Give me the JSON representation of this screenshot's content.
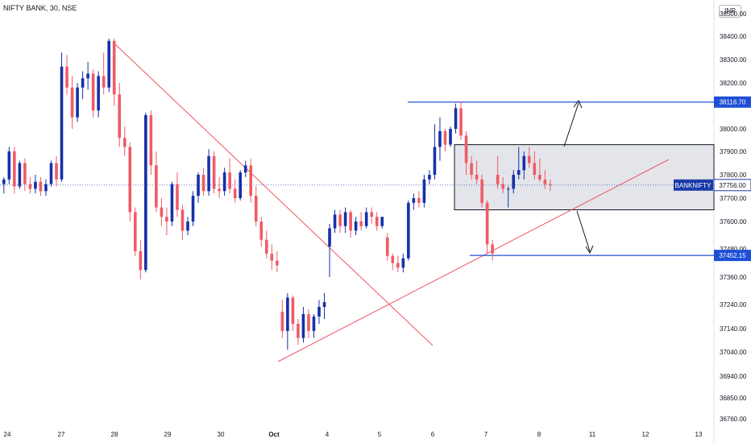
{
  "header": {
    "title": "NIFTY BANK, 30, NSE",
    "currency": "INR"
  },
  "chart_data": {
    "type": "candlestick",
    "symbol": "BANKNIFTY",
    "colors": {
      "up": "#1530a8",
      "down": "#ef5b65",
      "line": "#1f4fd6",
      "trend": "#ee5563",
      "box": "#e3e5ea"
    },
    "y_ticks": [
      38500,
      38400,
      38300,
      38200,
      38000,
      37900,
      37800,
      37700,
      37600,
      37480,
      37360,
      37240,
      37140,
      37040,
      36940,
      36850,
      36760
    ],
    "y_tick_labels": [
      "38500.00",
      "38400.00",
      "38300.00",
      "38200.00",
      "38000.00",
      "37900.00",
      "37800.00",
      "37700.00",
      "37600.00",
      "37480.00",
      "37360.00",
      "37240.00",
      "37140.00",
      "37040.00",
      "36940.00",
      "36850.00",
      "36760.00"
    ],
    "x_labels": [
      "24",
      "27",
      "28",
      "29",
      "30",
      "Oct",
      "4",
      "5",
      "6",
      "7",
      "8",
      "11",
      "12",
      "13"
    ],
    "price_labels": [
      {
        "text": "38116.70",
        "value": 38116.7
      },
      {
        "text": "37756.00",
        "value": 37756
      },
      {
        "text": "37452.15",
        "value": 37452.15
      }
    ],
    "symbol_tag": "BANKNIFTY",
    "last_price": 37756,
    "resistance": 38116.7,
    "support": 37452.15,
    "range_box": {
      "top": 37930,
      "bottom": 37650
    },
    "candles": [
      [
        37760,
        37790,
        37720,
        37780
      ],
      [
        37780,
        37920,
        37760,
        37900
      ],
      [
        37900,
        37920,
        37720,
        37750
      ],
      [
        37750,
        37860,
        37740,
        37850
      ],
      [
        37850,
        37870,
        37730,
        37760
      ],
      [
        37760,
        37790,
        37720,
        37740
      ],
      [
        37740,
        37800,
        37720,
        37770
      ],
      [
        37770,
        37790,
        37710,
        37730
      ],
      [
        37730,
        37780,
        37710,
        37760
      ],
      [
        37760,
        37860,
        37750,
        37850
      ],
      [
        37850,
        37880,
        37750,
        37780
      ],
      [
        37780,
        38330,
        37770,
        38270
      ],
      [
        38270,
        38320,
        38150,
        38180
      ],
      [
        38180,
        38230,
        38000,
        38050
      ],
      [
        38050,
        38200,
        38030,
        38180
      ],
      [
        38180,
        38250,
        38130,
        38220
      ],
      [
        38220,
        38290,
        38170,
        38240
      ],
      [
        38240,
        38260,
        38050,
        38080
      ],
      [
        38080,
        38250,
        38050,
        38230
      ],
      [
        38230,
        38330,
        38150,
        38180
      ],
      [
        38180,
        38390,
        38160,
        38380
      ],
      [
        38380,
        38390,
        38100,
        38150
      ],
      [
        38150,
        38200,
        37920,
        37960
      ],
      [
        37960,
        38010,
        37880,
        37920
      ],
      [
        37920,
        37940,
        37600,
        37640
      ],
      [
        37640,
        37660,
        37450,
        37470
      ],
      [
        37470,
        37520,
        37350,
        37390
      ],
      [
        37390,
        38070,
        37380,
        38060
      ],
      [
        38060,
        38080,
        37800,
        37840
      ],
      [
        37840,
        37900,
        37640,
        37660
      ],
      [
        37660,
        37700,
        37580,
        37620
      ],
      [
        37620,
        37660,
        37540,
        37600
      ],
      [
        37600,
        37770,
        37580,
        37760
      ],
      [
        37760,
        37810,
        37620,
        37650
      ],
      [
        37650,
        37670,
        37520,
        37560
      ],
      [
        37560,
        37620,
        37540,
        37600
      ],
      [
        37600,
        37730,
        37580,
        37710
      ],
      [
        37710,
        37810,
        37680,
        37800
      ],
      [
        37800,
        37830,
        37710,
        37730
      ],
      [
        37730,
        37910,
        37710,
        37880
      ],
      [
        37880,
        37900,
        37720,
        37740
      ],
      [
        37740,
        37790,
        37700,
        37730
      ],
      [
        37730,
        37830,
        37710,
        37810
      ],
      [
        37810,
        37870,
        37720,
        37740
      ],
      [
        37740,
        37780,
        37680,
        37700
      ],
      [
        37700,
        37820,
        37690,
        37810
      ],
      [
        37810,
        37860,
        37790,
        37840
      ],
      [
        37840,
        37870,
        37680,
        37710
      ],
      [
        37710,
        37750,
        37580,
        37600
      ],
      [
        37600,
        37620,
        37490,
        37520
      ],
      [
        37520,
        37560,
        37440,
        37460
      ],
      [
        37460,
        37500,
        37390,
        37430
      ],
      [
        37430,
        37470,
        37380,
        37410
      ],
      [
        37210,
        37260,
        37100,
        37130
      ],
      [
        37130,
        37290,
        37050,
        37270
      ],
      [
        37270,
        37280,
        37130,
        37160
      ],
      [
        37160,
        37180,
        37070,
        37100
      ],
      [
        37100,
        37230,
        37080,
        37200
      ],
      [
        37200,
        37220,
        37100,
        37130
      ],
      [
        37130,
        37200,
        37100,
        37190
      ],
      [
        37190,
        37260,
        37160,
        37230
      ],
      [
        37230,
        37290,
        37180,
        37250
      ],
      [
        37490,
        37590,
        37360,
        37570
      ],
      [
        37570,
        37650,
        37550,
        37630
      ],
      [
        37630,
        37650,
        37550,
        37580
      ],
      [
        37580,
        37660,
        37550,
        37640
      ],
      [
        37640,
        37650,
        37530,
        37560
      ],
      [
        37560,
        37620,
        37540,
        37600
      ],
      [
        37600,
        37640,
        37560,
        37580
      ],
      [
        37580,
        37660,
        37570,
        37640
      ],
      [
        37640,
        37660,
        37590,
        37620
      ],
      [
        37620,
        37640,
        37560,
        37580
      ],
      [
        37580,
        37620,
        37570,
        37620
      ],
      [
        37530,
        37550,
        37430,
        37450
      ],
      [
        37450,
        37460,
        37390,
        37420
      ],
      [
        37420,
        37450,
        37380,
        37400
      ],
      [
        37400,
        37460,
        37380,
        37440
      ],
      [
        37440,
        37690,
        37430,
        37680
      ],
      [
        37680,
        37720,
        37650,
        37700
      ],
      [
        37700,
        37730,
        37660,
        37680
      ],
      [
        37680,
        37800,
        37660,
        37780
      ],
      [
        37780,
        37820,
        37760,
        37800
      ],
      [
        37800,
        38020,
        37780,
        37920
      ],
      [
        37920,
        38050,
        37860,
        37990
      ],
      [
        37990,
        38000,
        37900,
        37930
      ],
      [
        37930,
        38010,
        37920,
        38000
      ],
      [
        38000,
        38110,
        37980,
        38090
      ],
      [
        38090,
        38120,
        37950,
        37970
      ],
      [
        37970,
        37990,
        37800,
        37850
      ],
      [
        37850,
        37880,
        37780,
        37800
      ],
      [
        37800,
        37860,
        37760,
        37780
      ],
      [
        37780,
        37800,
        37660,
        37680
      ],
      [
        37680,
        37690,
        37460,
        37500
      ],
      [
        37500,
        37520,
        37430,
        37460
      ],
      [
        37800,
        37880,
        37740,
        37760
      ],
      [
        37760,
        37790,
        37720,
        37740
      ],
      [
        37740,
        37750,
        37660,
        37740
      ],
      [
        37740,
        37820,
        37720,
        37800
      ],
      [
        37800,
        37920,
        37780,
        37820
      ],
      [
        37820,
        37900,
        37780,
        37880
      ],
      [
        37880,
        37920,
        37830,
        37850
      ],
      [
        37850,
        37900,
        37780,
        37800
      ],
      [
        37800,
        37870,
        37770,
        37780
      ],
      [
        37780,
        37820,
        37740,
        37760
      ],
      [
        37760,
        37780,
        37730,
        37756
      ]
    ]
  }
}
